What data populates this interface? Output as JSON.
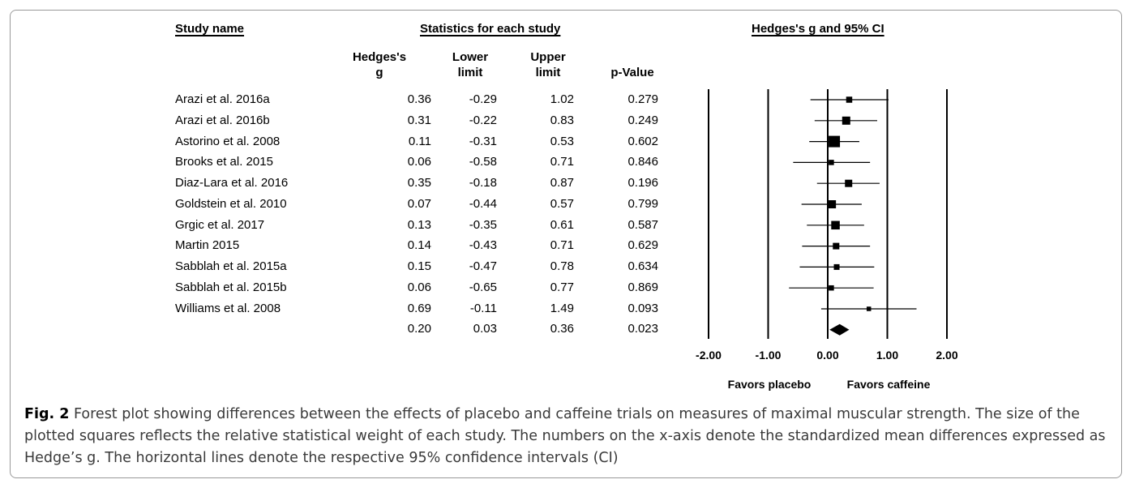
{
  "headers": {
    "study_name": "Study name",
    "statistics": "Statistics for each study",
    "plot_title": "Hedges's g and 95% CI",
    "col_g": "Hedges's\ng",
    "col_lower": "Lower\nlimit",
    "col_upper": "Upper\nlimit",
    "col_p": "p-Value"
  },
  "table_rows": [
    {
      "name": "Arazi et al. 2016a",
      "g": "0.36",
      "lower": "-0.29",
      "upper": "1.02",
      "p": "0.279"
    },
    {
      "name": "Arazi et al. 2016b",
      "g": "0.31",
      "lower": "-0.22",
      "upper": "0.83",
      "p": "0.249"
    },
    {
      "name": "Astorino et al. 2008",
      "g": "0.11",
      "lower": "-0.31",
      "upper": "0.53",
      "p": "0.602"
    },
    {
      "name": "Brooks et al. 2015",
      "g": "0.06",
      "lower": "-0.58",
      "upper": "0.71",
      "p": "0.846"
    },
    {
      "name": "Diaz-Lara et al. 2016",
      "g": "0.35",
      "lower": "-0.18",
      "upper": "0.87",
      "p": "0.196"
    },
    {
      "name": "Goldstein et al. 2010",
      "g": "0.07",
      "lower": "-0.44",
      "upper": "0.57",
      "p": "0.799"
    },
    {
      "name": "Grgic et al. 2017",
      "g": "0.13",
      "lower": "-0.35",
      "upper": "0.61",
      "p": "0.587"
    },
    {
      "name": "Martin 2015",
      "g": "0.14",
      "lower": "-0.43",
      "upper": "0.71",
      "p": "0.629"
    },
    {
      "name": "Sabblah et al. 2015a",
      "g": "0.15",
      "lower": "-0.47",
      "upper": "0.78",
      "p": "0.634"
    },
    {
      "name": "Sabblah et al. 2015b",
      "g": "0.06",
      "lower": "-0.65",
      "upper": "0.77",
      "p": "0.869"
    },
    {
      "name": "Williams et al. 2008",
      "g": "0.69",
      "lower": "-0.11",
      "upper": "1.49",
      "p": "0.093"
    },
    {
      "name": "",
      "g": "0.20",
      "lower": "0.03",
      "upper": "0.36",
      "p": "0.023"
    }
  ],
  "chart_data": {
    "type": "forest",
    "title": "Hedges's g and 95% CI",
    "xlim": [
      -2,
      2
    ],
    "x_ticks": [
      -2,
      -1,
      0,
      1,
      2
    ],
    "x_tick_labels": [
      "-2.00",
      "-1.00",
      "0.00",
      "1.00",
      "2.00"
    ],
    "reference_lines": [
      -2,
      -1,
      0,
      1,
      2
    ],
    "favors_left": "Favors placebo",
    "favors_right": "Favors caffeine",
    "studies": [
      {
        "name": "Arazi et al. 2016a",
        "g": 0.36,
        "lower": -0.29,
        "upper": 1.02,
        "weight": 7.5
      },
      {
        "name": "Arazi et al. 2016b",
        "g": 0.31,
        "lower": -0.22,
        "upper": 0.83,
        "weight": 10
      },
      {
        "name": "Astorino et al. 2008",
        "g": 0.11,
        "lower": -0.31,
        "upper": 0.53,
        "weight": 14
      },
      {
        "name": "Brooks et al. 2015",
        "g": 0.06,
        "lower": -0.58,
        "upper": 0.71,
        "weight": 6.5
      },
      {
        "name": "Diaz-Lara et al. 2016",
        "g": 0.35,
        "lower": -0.18,
        "upper": 0.87,
        "weight": 9
      },
      {
        "name": "Goldstein et al. 2010",
        "g": 0.07,
        "lower": -0.44,
        "upper": 0.57,
        "weight": 10
      },
      {
        "name": "Grgic et al. 2017",
        "g": 0.13,
        "lower": -0.35,
        "upper": 0.61,
        "weight": 10.5
      },
      {
        "name": "Martin 2015",
        "g": 0.14,
        "lower": -0.43,
        "upper": 0.71,
        "weight": 8
      },
      {
        "name": "Sabblah et al. 2015a",
        "g": 0.15,
        "lower": -0.47,
        "upper": 0.78,
        "weight": 7
      },
      {
        "name": "Sabblah et al. 2015b",
        "g": 0.06,
        "lower": -0.65,
        "upper": 0.77,
        "weight": 6.5
      },
      {
        "name": "Williams et al. 2008",
        "g": 0.69,
        "lower": -0.11,
        "upper": 1.49,
        "weight": 5.5
      }
    ],
    "summary": {
      "g": 0.2,
      "lower": 0.03,
      "upper": 0.36
    }
  },
  "caption": {
    "label": "Fig. 2",
    "text": " Forest plot showing differences between the effects of placebo and caffeine trials on measures of maximal muscular strength. The size of the plotted squares reflects the relative statistical weight of each study. The numbers on the x-axis denote the standardized mean differences expressed as Hedge’s g. The horizontal lines denote the respective 95% confidence intervals (CI)"
  }
}
